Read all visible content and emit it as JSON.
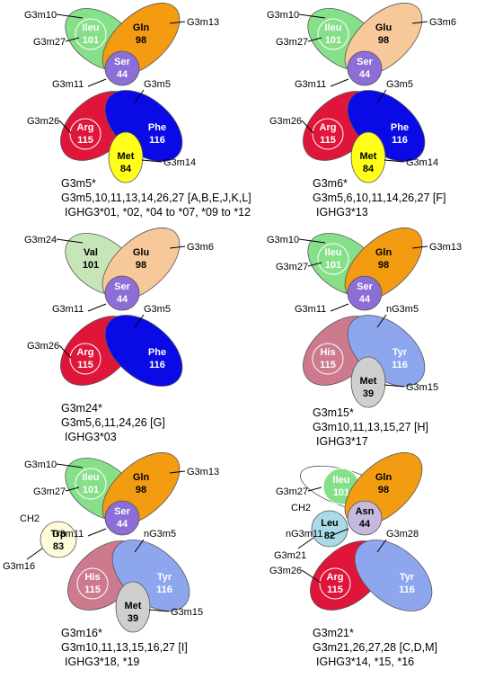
{
  "colors": {
    "green": "#86e08a",
    "green_pale": "#c6e6b8",
    "orange": "#f39c12",
    "orange_pale": "#f7c89a",
    "purple": "#8c6ed6",
    "purple_pale": "#c7b8e0",
    "red": "#e0153a",
    "red_pale": "#cd7a8e",
    "blue": "#0a0ae6",
    "blue_pale": "#8da6ee",
    "yellow": "#ffff1a",
    "grey": "#cfcfcf",
    "cream": "#fdfbd9",
    "cyan": "#a9dbe6",
    "outline": "#555555"
  },
  "panels": [
    {
      "id": "g3m5",
      "residues": {
        "top_left": {
          "name": "Ileu",
          "pos": "101",
          "fill": "green"
        },
        "top_right": {
          "name": "Gln",
          "pos": "98",
          "fill": "orange"
        },
        "center": {
          "name": "Ser",
          "pos": "44",
          "fill": "purple"
        },
        "bottom_left": {
          "name": "Arg",
          "pos": "115",
          "fill": "red"
        },
        "bottom_right": {
          "name": "Phe",
          "pos": "116",
          "fill": "blue"
        },
        "bottom": {
          "name": "Met",
          "pos": "84",
          "fill": "yellow"
        }
      },
      "annotations": {
        "top_left_a": "G3m10",
        "top_left_b": "G3m27",
        "top_right": "G3m13",
        "center": "G3m11",
        "mid_right": "G3m5",
        "bottom_left": "G3m26",
        "bottom": "G3m14"
      },
      "caption": {
        "line1": "G3m5*",
        "line2": "G3m5,10,11,13,14,26,27 [A,B,E,J,K,L]",
        "line3": "IGHG3*01, *02, *04 to *07, *09 to *12"
      }
    },
    {
      "id": "g3m6",
      "residues": {
        "top_left": {
          "name": "Ileu",
          "pos": "101",
          "fill": "green"
        },
        "top_right": {
          "name": "Glu",
          "pos": "98",
          "fill": "orange_pale"
        },
        "center": {
          "name": "Ser",
          "pos": "44",
          "fill": "purple"
        },
        "bottom_left": {
          "name": "Arg",
          "pos": "115",
          "fill": "red"
        },
        "bottom_right": {
          "name": "Phe",
          "pos": "116",
          "fill": "blue"
        },
        "bottom": {
          "name": "Met",
          "pos": "84",
          "fill": "yellow"
        }
      },
      "annotations": {
        "top_left_a": "G3m10",
        "top_left_b": "G3m27",
        "top_right": "G3m6",
        "center": "G3m11",
        "mid_right": "G3m5",
        "bottom_left": "G3m26",
        "bottom": "G3m14"
      },
      "caption": {
        "line1": "G3m6*",
        "line2": "G3m5,6,10,11,14,26,27 [F]",
        "line3": "IGHG3*13"
      }
    },
    {
      "id": "g3m24",
      "residues": {
        "top_left": {
          "name": "Val",
          "pos": "101",
          "fill": "green_pale"
        },
        "top_right": {
          "name": "Glu",
          "pos": "98",
          "fill": "orange_pale"
        },
        "center": {
          "name": "Ser",
          "pos": "44",
          "fill": "purple"
        },
        "bottom_left": {
          "name": "Arg",
          "pos": "115",
          "fill": "red"
        },
        "bottom_right": {
          "name": "Phe",
          "pos": "116",
          "fill": "blue"
        }
      },
      "annotations": {
        "top_left_a": "G3m24",
        "top_right": "G3m6",
        "center": "G3m11",
        "mid_right": "G3m5",
        "bottom_left": "G3m26"
      },
      "caption": {
        "line1": "G3m24*",
        "line2": "G3m5,6,11,24,26 [G]",
        "line3": "IGHG3*03"
      }
    },
    {
      "id": "g3m15",
      "residues": {
        "top_left": {
          "name": "Ileu",
          "pos": "101",
          "fill": "green"
        },
        "top_right": {
          "name": "Gln",
          "pos": "98",
          "fill": "orange"
        },
        "center": {
          "name": "Ser",
          "pos": "44",
          "fill": "purple"
        },
        "bottom_left": {
          "name": "His",
          "pos": "115",
          "fill": "red_pale"
        },
        "bottom_right": {
          "name": "Tyr",
          "pos": "116",
          "fill": "blue_pale"
        },
        "bottom": {
          "name": "Met",
          "pos": "39",
          "fill": "grey"
        }
      },
      "annotations": {
        "top_left_a": "G3m10",
        "top_left_b": "G3m27",
        "top_right": "G3m13",
        "center": "G3m11",
        "mid_right": "nG3m5",
        "bottom": "G3m15"
      },
      "caption": {
        "line1": "G3m15*",
        "line2": "G3m10,11,13,15,27 [H]",
        "line3": "IGHG3*17"
      }
    },
    {
      "id": "g3m16",
      "residues": {
        "top_left": {
          "name": "Ileu",
          "pos": "101",
          "fill": "green"
        },
        "top_right": {
          "name": "Gln",
          "pos": "98",
          "fill": "orange"
        },
        "center": {
          "name": "Ser",
          "pos": "44",
          "fill": "purple"
        },
        "bottom_left": {
          "name": "His",
          "pos": "115",
          "fill": "red_pale"
        },
        "bottom_right": {
          "name": "Tyr",
          "pos": "116",
          "fill": "blue_pale"
        },
        "bottom": {
          "name": "Met",
          "pos": "39",
          "fill": "grey"
        },
        "side": {
          "name": "Trp",
          "pos": "83",
          "fill": "cream"
        }
      },
      "annotations": {
        "top_left_a": "G3m10",
        "top_left_b": "G3m27",
        "top_right": "G3m13",
        "center": "G3m11",
        "mid_right": "nG3m5",
        "bottom": "G3m15",
        "side_top": "CH2",
        "side_bottom": "G3m16"
      },
      "caption": {
        "line1": "G3m16*",
        "line2": "G3m10,11,13,15,16,27 [I]",
        "line3": "IGHG3*18, *19"
      }
    },
    {
      "id": "g3m21",
      "residues": {
        "top_left": {
          "name": "Ileu",
          "pos": "101",
          "fill": "green"
        },
        "top_right": {
          "name": "Gln",
          "pos": "98",
          "fill": "orange"
        },
        "center": {
          "name": "Asn",
          "pos": "44",
          "fill": "purple_pale"
        },
        "bottom_left": {
          "name": "Arg",
          "pos": "115",
          "fill": "red"
        },
        "bottom_right": {
          "name": "Tyr",
          "pos": "116",
          "fill": "blue_pale"
        },
        "side": {
          "name": "Leu",
          "pos": "82",
          "fill": "cyan"
        }
      },
      "annotations": {
        "top_left_b": "G3m27",
        "center": "nG3m11",
        "mid_right": "G3m28",
        "bottom_left": "G3m26",
        "side_top": "CH2",
        "side_bottom": "G3m21"
      },
      "caption": {
        "line1": "G3m21*",
        "line2": "G3m21,26,27,28 [C,D,M]",
        "line3": "IGHG3*14, *15, *16"
      }
    }
  ]
}
